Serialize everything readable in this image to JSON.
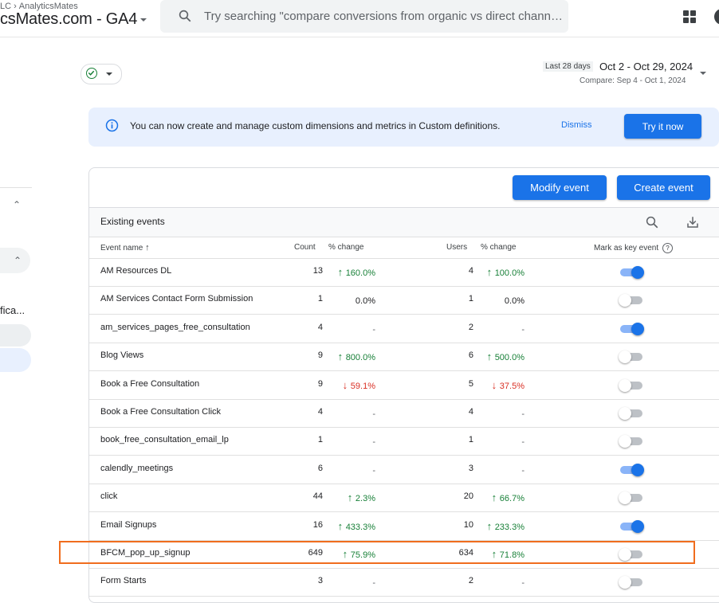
{
  "header": {
    "breadcrumb": [
      "LC",
      "AnalyticsMates"
    ],
    "property_name": "csMates.com - GA4",
    "search_placeholder": "Try searching \"compare conversions from organic vs direct channel...\""
  },
  "leftnav": {
    "truncated_label": "fica..."
  },
  "date": {
    "badge": "Last 28 days",
    "range": "Oct 2 - Oct 29, 2024",
    "compare": "Compare: Sep 4 - Oct 1, 2024"
  },
  "banner": {
    "text": "You can now create and manage custom dimensions and metrics in Custom definitions.",
    "dismiss": "Dismiss",
    "try_it": "Try it now"
  },
  "card": {
    "modify_button": "Modify event",
    "create_button": "Create event",
    "title": "Existing events"
  },
  "table": {
    "headers": {
      "name": "Event name",
      "count": "Count",
      "count_change": "% change",
      "users": "Users",
      "users_change": "% change",
      "key_event": "Mark as key event"
    },
    "rows": [
      {
        "name": "AM Resources DL",
        "count": "13",
        "count_change": "160.0%",
        "count_dir": "up",
        "users": "4",
        "users_change": "100.0%",
        "users_dir": "up",
        "key_event": true
      },
      {
        "name": "AM Services Contact Form Submission",
        "count": "1",
        "count_change": "0.0%",
        "count_dir": "flat",
        "users": "1",
        "users_change": "0.0%",
        "users_dir": "flat",
        "key_event": false
      },
      {
        "name": "am_services_pages_free_consultation",
        "count": "4",
        "count_change": "-",
        "count_dir": "none",
        "users": "2",
        "users_change": "-",
        "users_dir": "none",
        "key_event": true
      },
      {
        "name": "Blog Views",
        "count": "9",
        "count_change": "800.0%",
        "count_dir": "up",
        "users": "6",
        "users_change": "500.0%",
        "users_dir": "up",
        "key_event": false
      },
      {
        "name": "Book a Free Consultation",
        "count": "9",
        "count_change": "59.1%",
        "count_dir": "down",
        "users": "5",
        "users_change": "37.5%",
        "users_dir": "down",
        "key_event": false
      },
      {
        "name": "Book a Free Consultation Click",
        "count": "4",
        "count_change": "-",
        "count_dir": "none",
        "users": "4",
        "users_change": "-",
        "users_dir": "none",
        "key_event": false
      },
      {
        "name": "book_free_consultation_email_lp",
        "count": "1",
        "count_change": "-",
        "count_dir": "none",
        "users": "1",
        "users_change": "-",
        "users_dir": "none",
        "key_event": false
      },
      {
        "name": "calendly_meetings",
        "count": "6",
        "count_change": "-",
        "count_dir": "none",
        "users": "3",
        "users_change": "-",
        "users_dir": "none",
        "key_event": true
      },
      {
        "name": "click",
        "count": "44",
        "count_change": "2.3%",
        "count_dir": "up",
        "users": "20",
        "users_change": "66.7%",
        "users_dir": "up",
        "key_event": false
      },
      {
        "name": "Email Signups",
        "count": "16",
        "count_change": "433.3%",
        "count_dir": "up",
        "users": "10",
        "users_change": "233.3%",
        "users_dir": "up",
        "key_event": true
      },
      {
        "name": "BFCM_pop_up_signup",
        "count": "649",
        "count_change": "75.9%",
        "count_dir": "up",
        "users": "634",
        "users_change": "71.8%",
        "users_dir": "up",
        "key_event": false
      },
      {
        "name": "Form Starts",
        "count": "3",
        "count_change": "-",
        "count_dir": "none",
        "users": "2",
        "users_change": "-",
        "users_dir": "none",
        "key_event": false
      }
    ]
  },
  "colors": {
    "accent": "#1a73e8",
    "up": "#188038",
    "down": "#d93025",
    "highlight": "#f06d1e"
  }
}
